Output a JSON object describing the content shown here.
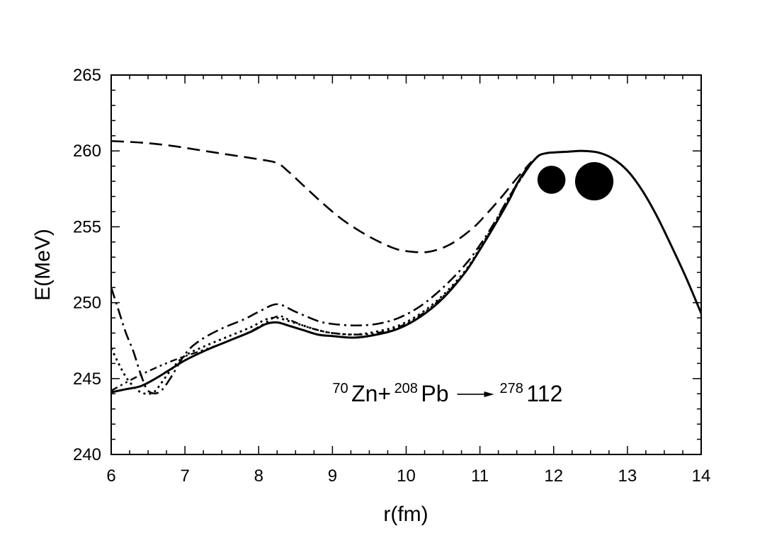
{
  "chart_data": {
    "type": "line",
    "xlabel": "r(fm)",
    "ylabel": "E(MeV)",
    "xlim": [
      6,
      14
    ],
    "ylim": [
      240,
      265
    ],
    "xticks": [
      6,
      7,
      8,
      9,
      10,
      11,
      12,
      13,
      14
    ],
    "yticks": [
      240,
      245,
      250,
      255,
      260,
      265
    ],
    "x_minor_step": 0.25,
    "y_minor_step": 1,
    "grid": false,
    "annotation": {
      "a1": "70",
      "sym1": "Zn+",
      "a2": "208",
      "sym2": "Pb",
      "a3": "278",
      "sym3": "112",
      "x": 9.0,
      "y": 243.5
    },
    "nuclei": [
      {
        "x": 11.97,
        "y": 258.1,
        "r": 0.19
      },
      {
        "x": 12.55,
        "y": 258.0,
        "r": 0.26
      }
    ],
    "series": [
      {
        "style": "solid",
        "x": [
          6.0,
          6.2,
          6.4,
          6.6,
          6.8,
          7.0,
          7.3,
          7.6,
          7.9,
          8.1,
          8.25,
          8.4,
          8.6,
          8.8,
          9.0,
          9.3,
          9.6,
          9.9,
          10.2,
          10.5,
          10.8,
          11.0,
          11.2,
          11.4,
          11.5,
          11.6,
          11.7,
          11.8,
          11.9,
          12.0,
          12.2,
          12.4,
          12.6,
          12.8,
          13.0,
          13.2,
          13.4,
          13.6,
          13.8,
          14.0
        ],
        "y": [
          244.1,
          244.3,
          244.5,
          245.0,
          245.6,
          246.2,
          246.9,
          247.5,
          248.1,
          248.6,
          248.7,
          248.5,
          248.2,
          247.9,
          247.8,
          247.7,
          247.9,
          248.3,
          249.1,
          250.3,
          252.0,
          253.5,
          255.1,
          256.8,
          257.8,
          258.6,
          259.2,
          259.7,
          259.85,
          259.9,
          259.95,
          260.0,
          259.9,
          259.5,
          258.7,
          257.4,
          255.7,
          253.7,
          251.6,
          249.3
        ]
      },
      {
        "style": "dashed",
        "x": [
          6.0,
          6.4,
          6.8,
          7.2,
          7.6,
          8.0,
          8.25,
          8.4,
          8.6,
          8.8,
          9.0,
          9.2,
          9.5,
          9.8,
          10.0,
          10.3,
          10.6,
          10.9,
          11.1,
          11.3,
          11.5,
          11.7
        ],
        "y": [
          260.65,
          260.55,
          260.35,
          260.05,
          259.75,
          259.45,
          259.2,
          258.65,
          257.75,
          256.85,
          256.0,
          255.25,
          254.35,
          253.65,
          253.4,
          253.35,
          253.85,
          254.9,
          255.9,
          257.0,
          258.2,
          259.3
        ]
      },
      {
        "style": "dashdot",
        "x": [
          6.0,
          6.1,
          6.2,
          6.3,
          6.4,
          6.5,
          6.65,
          6.8,
          7.0,
          7.2,
          7.5,
          7.8,
          8.0,
          8.25,
          8.5,
          8.8,
          9.0,
          9.3,
          9.6,
          9.9,
          10.2,
          10.5,
          10.8,
          11.0,
          11.2,
          11.4,
          11.6,
          11.7
        ],
        "y": [
          251.0,
          249.5,
          248.0,
          246.8,
          245.3,
          244.2,
          244.1,
          245.0,
          246.6,
          247.5,
          248.3,
          248.9,
          249.4,
          249.9,
          249.4,
          248.8,
          248.6,
          248.5,
          248.6,
          249.0,
          249.8,
          251.0,
          252.5,
          253.8,
          255.3,
          257.0,
          258.5,
          259.2
        ]
      },
      {
        "style": "dotted",
        "x": [
          6.0,
          6.1,
          6.2,
          6.3,
          6.4,
          6.5,
          6.6,
          6.8,
          7.0,
          7.3,
          7.6,
          7.9,
          8.1,
          8.25,
          8.4,
          8.6,
          8.8,
          9.0,
          9.3,
          9.6,
          9.9,
          10.2,
          10.5,
          10.8,
          11.0,
          11.2,
          11.4,
          11.6,
          11.7
        ],
        "y": [
          247.0,
          246.0,
          245.1,
          244.5,
          244.1,
          244.0,
          244.2,
          245.5,
          246.5,
          247.2,
          247.8,
          248.4,
          248.9,
          249.0,
          248.8,
          248.5,
          248.2,
          248.0,
          247.9,
          248.1,
          248.5,
          249.3,
          250.5,
          252.1,
          253.6,
          255.2,
          257.0,
          258.6,
          259.3
        ]
      },
      {
        "style": "dashdotdot",
        "x": [
          6.0,
          6.3,
          6.6,
          6.9,
          7.2,
          7.5,
          7.8,
          8.0,
          8.25,
          8.4,
          8.6,
          8.8,
          9.0,
          9.3,
          9.6,
          9.9,
          10.2,
          10.5,
          10.8,
          11.0,
          11.2,
          11.4,
          11.6,
          11.7
        ],
        "y": [
          244.2,
          245.0,
          245.7,
          246.3,
          246.8,
          247.3,
          247.9,
          248.4,
          249.1,
          248.9,
          248.5,
          248.2,
          248.0,
          247.9,
          248.0,
          248.4,
          249.2,
          250.4,
          252.0,
          253.5,
          255.1,
          256.9,
          258.5,
          259.2
        ]
      }
    ]
  }
}
